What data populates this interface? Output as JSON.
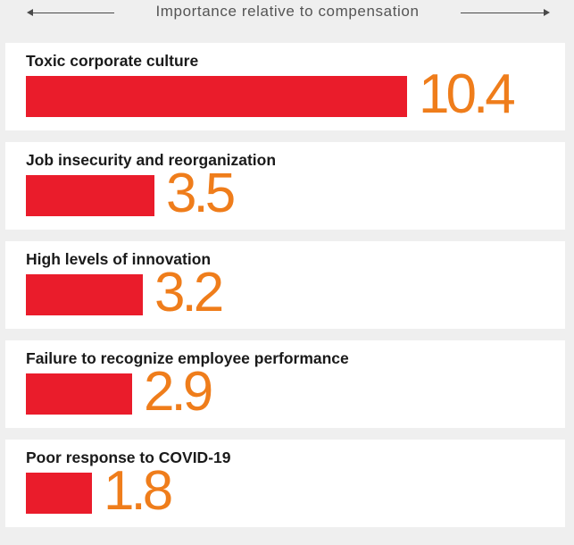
{
  "header": {
    "label": "Importance relative to compensation"
  },
  "chart_data": {
    "type": "bar",
    "orientation": "horizontal",
    "xlabel": "Importance relative to compensation",
    "categories": [
      "Toxic corporate culture",
      "Job insecurity and reorganization",
      "High levels of innovation",
      "Failure to recognize employee performance",
      "Poor response to COVID-19"
    ],
    "values": [
      10.4,
      3.5,
      3.2,
      2.9,
      1.8
    ],
    "value_labels": [
      "10.4",
      "3.5",
      "3.2",
      "2.9",
      "1.8"
    ],
    "colors": {
      "bar": "#ea1c2b",
      "value_text": "#ef7d1b",
      "panel": "#ffffff",
      "background": "#efefef"
    }
  }
}
